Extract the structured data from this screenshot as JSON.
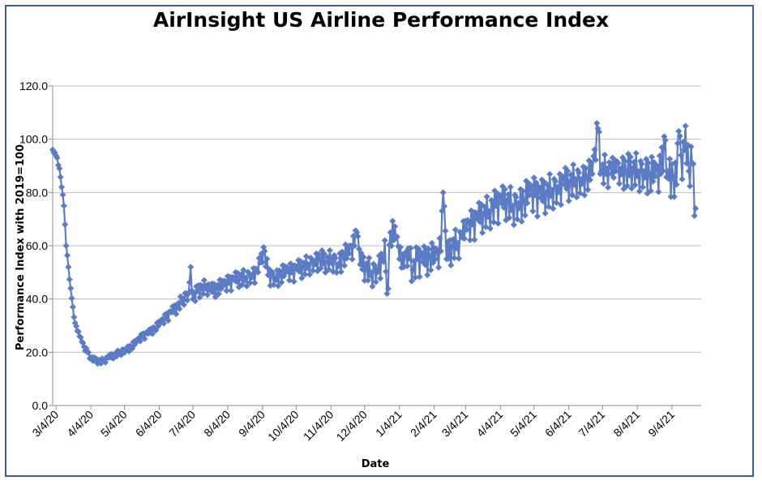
{
  "chart_data": {
    "type": "line",
    "title": "AirInsight US Airline Performance Index",
    "xlabel": "Date",
    "ylabel": "Performance Index with 2019=100",
    "ylim": [
      0,
      120
    ],
    "ytick_labels": [
      "0.0",
      "20.0",
      "40.0",
      "60.0",
      "80.0",
      "100.0",
      "120.0"
    ],
    "xtick_labels": [
      "3/4/20",
      "4/4/20",
      "5/4/20",
      "6/4/20",
      "7/4/20",
      "8/4/20",
      "9/4/20",
      "10/4/20",
      "11/4/20",
      "12/4/20",
      "1/4/21",
      "2/4/21",
      "3/4/21",
      "4/4/21",
      "5/4/21",
      "6/4/21",
      "7/4/21",
      "8/4/21",
      "9/4/21"
    ],
    "x_range": [
      "2020-03-01",
      "2021-09-30"
    ],
    "grid": "horizontal",
    "marker": "diamond",
    "series": [
      {
        "color": "#5b7cc4",
        "points": [
          [
            "2020-03-01",
            96
          ],
          [
            "2020-03-03",
            95
          ],
          [
            "2020-03-05",
            93
          ],
          [
            "2020-03-07",
            89
          ],
          [
            "2020-03-09",
            82
          ],
          [
            "2020-03-11",
            75
          ],
          [
            "2020-03-13",
            60
          ],
          [
            "2020-03-15",
            52
          ],
          [
            "2020-03-17",
            44
          ],
          [
            "2020-03-19",
            37
          ],
          [
            "2020-03-21",
            31
          ],
          [
            "2020-03-23",
            28
          ],
          [
            "2020-03-25",
            26
          ],
          [
            "2020-03-27",
            24
          ],
          [
            "2020-03-29",
            22
          ],
          [
            "2020-04-01",
            20
          ],
          [
            "2020-04-04",
            18
          ],
          [
            "2020-04-08",
            17
          ],
          [
            "2020-04-12",
            16.5
          ],
          [
            "2020-04-16",
            17
          ],
          [
            "2020-04-20",
            18
          ],
          [
            "2020-04-25",
            19
          ],
          [
            "2020-04-30",
            20
          ],
          [
            "2020-05-05",
            21
          ],
          [
            "2020-05-10",
            22
          ],
          [
            "2020-05-15",
            24
          ],
          [
            "2020-05-20",
            26
          ],
          [
            "2020-05-25",
            27
          ],
          [
            "2020-05-31",
            29
          ],
          [
            "2020-06-05",
            31
          ],
          [
            "2020-06-10",
            33
          ],
          [
            "2020-06-15",
            35
          ],
          [
            "2020-06-20",
            37
          ],
          [
            "2020-06-25",
            40
          ],
          [
            "2020-06-30",
            42
          ],
          [
            "2020-07-02",
            52
          ],
          [
            "2020-07-04",
            40
          ],
          [
            "2020-07-08",
            43
          ],
          [
            "2020-07-12",
            44
          ],
          [
            "2020-07-16",
            45
          ],
          [
            "2020-07-20",
            43
          ],
          [
            "2020-07-25",
            44
          ],
          [
            "2020-07-31",
            45
          ],
          [
            "2020-08-05",
            46
          ],
          [
            "2020-08-10",
            47
          ],
          [
            "2020-08-15",
            48
          ],
          [
            "2020-08-20",
            48
          ],
          [
            "2020-08-25",
            49
          ],
          [
            "2020-08-31",
            50
          ],
          [
            "2020-09-03",
            57
          ],
          [
            "2020-09-06",
            58
          ],
          [
            "2020-09-09",
            49
          ],
          [
            "2020-09-15",
            48
          ],
          [
            "2020-09-20",
            49
          ],
          [
            "2020-09-25",
            50
          ],
          [
            "2020-09-30",
            50
          ],
          [
            "2020-10-05",
            51
          ],
          [
            "2020-10-10",
            52
          ],
          [
            "2020-10-15",
            53
          ],
          [
            "2020-10-20",
            54
          ],
          [
            "2020-10-25",
            55
          ],
          [
            "2020-10-31",
            54
          ],
          [
            "2020-11-05",
            55
          ],
          [
            "2020-11-10",
            53
          ],
          [
            "2020-11-15",
            56
          ],
          [
            "2020-11-20",
            57
          ],
          [
            "2020-11-25",
            60
          ],
          [
            "2020-11-27",
            65
          ],
          [
            "2020-11-30",
            53
          ],
          [
            "2020-12-05",
            52
          ],
          [
            "2020-12-10",
            50
          ],
          [
            "2020-12-15",
            51
          ],
          [
            "2020-12-20",
            55
          ],
          [
            "2020-12-22",
            62
          ],
          [
            "2020-12-24",
            42
          ],
          [
            "2020-12-27",
            65
          ],
          [
            "2021-01-01",
            63
          ],
          [
            "2021-01-04",
            55
          ],
          [
            "2021-01-08",
            52
          ],
          [
            "2021-01-12",
            59
          ],
          [
            "2021-01-16",
            51
          ],
          [
            "2021-01-20",
            55
          ],
          [
            "2021-01-25",
            54
          ],
          [
            "2021-01-31",
            56
          ],
          [
            "2021-02-05",
            55
          ],
          [
            "2021-02-10",
            58
          ],
          [
            "2021-02-12",
            80
          ],
          [
            "2021-02-15",
            55
          ],
          [
            "2021-02-20",
            60
          ],
          [
            "2021-02-25",
            61
          ],
          [
            "2021-03-01",
            63
          ],
          [
            "2021-03-05",
            66
          ],
          [
            "2021-03-10",
            68
          ],
          [
            "2021-03-15",
            70
          ],
          [
            "2021-03-20",
            72
          ],
          [
            "2021-03-25",
            73
          ],
          [
            "2021-03-31",
            75
          ],
          [
            "2021-04-05",
            76
          ],
          [
            "2021-04-10",
            77
          ],
          [
            "2021-04-15",
            75
          ],
          [
            "2021-04-20",
            76
          ],
          [
            "2021-04-25",
            77
          ],
          [
            "2021-04-30",
            79
          ],
          [
            "2021-05-05",
            79
          ],
          [
            "2021-05-10",
            78
          ],
          [
            "2021-05-15",
            80
          ],
          [
            "2021-05-20",
            81
          ],
          [
            "2021-05-25",
            82
          ],
          [
            "2021-05-31",
            83
          ],
          [
            "2021-06-05",
            84
          ],
          [
            "2021-06-10",
            85
          ],
          [
            "2021-06-15",
            85
          ],
          [
            "2021-06-20",
            86
          ],
          [
            "2021-06-25",
            87
          ],
          [
            "2021-06-30",
            104
          ],
          [
            "2021-07-03",
            88
          ],
          [
            "2021-07-08",
            89
          ],
          [
            "2021-07-12",
            87
          ],
          [
            "2021-07-16",
            88
          ],
          [
            "2021-07-20",
            89
          ],
          [
            "2021-07-25",
            88
          ],
          [
            "2021-07-31",
            89
          ],
          [
            "2021-08-05",
            88
          ],
          [
            "2021-08-10",
            88
          ],
          [
            "2021-08-15",
            87
          ],
          [
            "2021-08-20",
            86
          ],
          [
            "2021-08-25",
            87
          ],
          [
            "2021-08-28",
            101
          ],
          [
            "2021-08-31",
            88
          ],
          [
            "2021-09-05",
            86
          ],
          [
            "2021-09-08",
            83
          ],
          [
            "2021-09-10",
            103
          ],
          [
            "2021-09-13",
            85
          ],
          [
            "2021-09-16",
            105
          ],
          [
            "2021-09-19",
            88
          ],
          [
            "2021-09-22",
            91
          ],
          [
            "2021-09-25",
            74
          ]
        ],
        "daily_spread": [
          [
            "2020-03-01",
            1
          ],
          [
            "2020-06-01",
            2
          ],
          [
            "2020-07-01",
            4
          ],
          [
            "2020-09-01",
            5
          ],
          [
            "2020-11-01",
            6
          ],
          [
            "2020-12-15",
            8
          ],
          [
            "2021-01-15",
            9
          ],
          [
            "2021-03-01",
            9
          ],
          [
            "2021-05-01",
            11
          ],
          [
            "2021-07-01",
            9
          ],
          [
            "2021-09-01",
            12
          ],
          [
            "2021-09-30",
            12
          ]
        ]
      }
    ]
  }
}
